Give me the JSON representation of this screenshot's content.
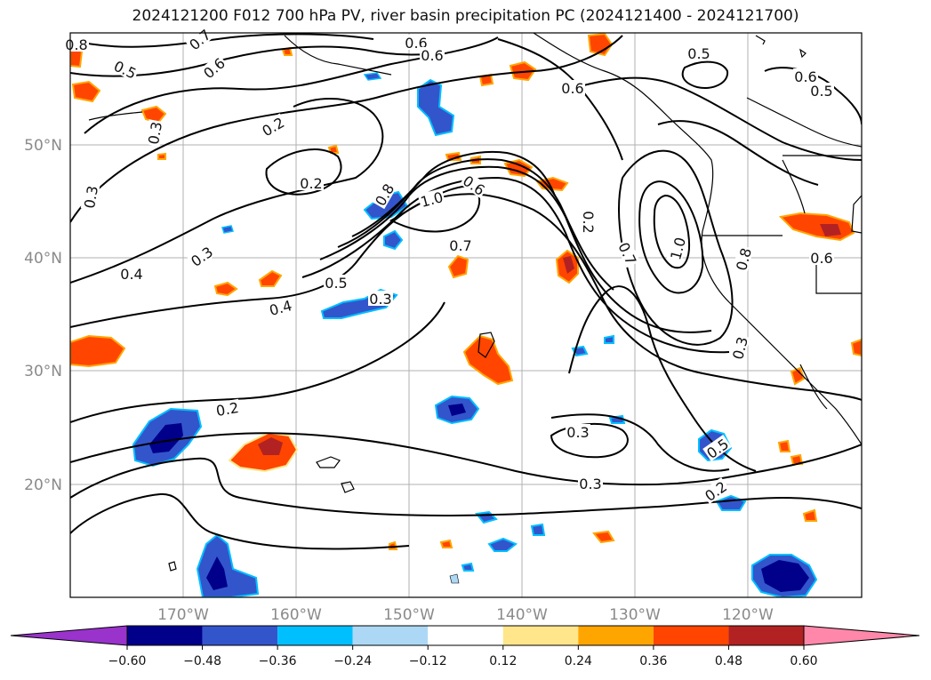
{
  "title": "2024121200 F012 700 hPa PV, river basin precipitation PC (2024121400 - 2024121700)",
  "lat_labels": [
    "50°N",
    "40°N",
    "30°N",
    "20°N"
  ],
  "lon_labels": [
    "170°W",
    "160°W",
    "150°W",
    "140°W",
    "130°W",
    "120°W"
  ],
  "contour_labels": [
    "0.8",
    "0.7",
    "0.6",
    "0.6",
    "0.5",
    "0.5",
    "0.6",
    "0.5",
    "0.3",
    "0.2",
    "0.3",
    "0.2",
    "0.8",
    "1.0",
    "0.6",
    "0.2",
    "0.7",
    "1.0",
    "0.8",
    "0.6",
    "0.3",
    "0.4",
    "0.5",
    "0.3",
    "0.4",
    "0.7",
    "0.3",
    "0.2",
    "0.3",
    "0.3",
    "0.5",
    "0.2",
    "0.6",
    "0.6"
  ],
  "colorbar": {
    "ticks": [
      "−0.60",
      "−0.48",
      "−0.36",
      "−0.24",
      "−0.12",
      "0.12",
      "0.24",
      "0.36",
      "0.48",
      "0.60"
    ],
    "colors": [
      "#9933cc",
      "#00008b",
      "#3355cc",
      "#00bfff",
      "#add8f5",
      "#ffffff",
      "#ffe68a",
      "#ffa500",
      "#ff4500",
      "#b22222",
      "#ff88aa"
    ]
  },
  "colors": {
    "contour": "#000000",
    "grid": "#b0b0b0",
    "coast": "#000000"
  }
}
